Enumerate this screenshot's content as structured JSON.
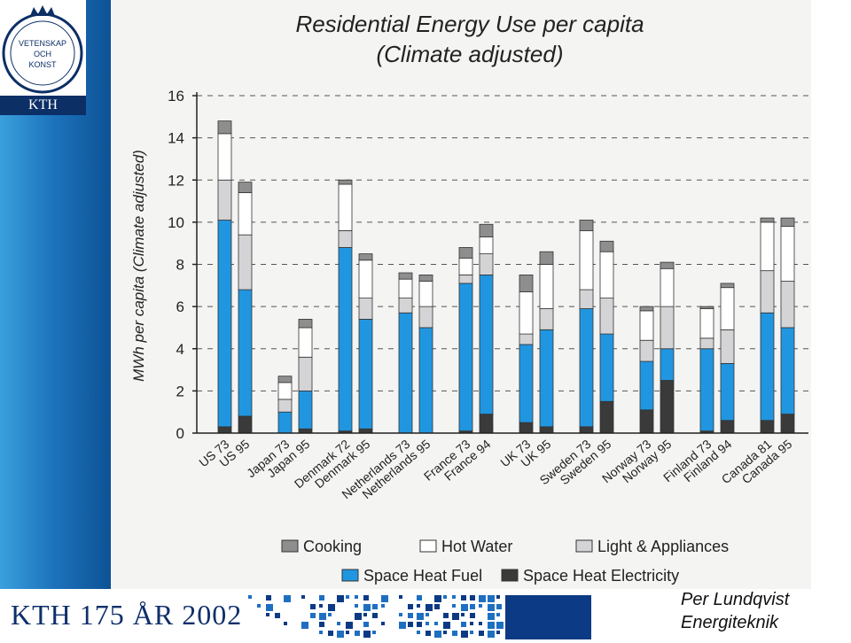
{
  "logo": {
    "line1": "VETENSKAP",
    "line2": "OCH",
    "line3": "KONST",
    "name": "KTH"
  },
  "footer": {
    "title": "KTH 175 ÅR 2002",
    "author": "Per Lundqvist",
    "dept": "Energiteknik"
  },
  "colors": {
    "cooking": "#8e8e8e",
    "hot_water": "#ffffff",
    "light_appliances": "#d4d4d6",
    "space_heat_fuel": "#2196e0",
    "space_heat_electricity": "#3a3a3a"
  },
  "chart_data": {
    "type": "bar",
    "stacked": true,
    "title": "Residential Energy Use per capita",
    "subtitle": "(Climate adjusted)",
    "xlabel": "",
    "ylabel": "MWh per capita (Climate adjusted)",
    "ylim": [
      0,
      16
    ],
    "yticks": [
      0,
      2,
      4,
      6,
      8,
      10,
      12,
      14,
      16
    ],
    "grid": "dashed-horizontal",
    "legend_position": "bottom",
    "categories": [
      "US 73",
      "US 95",
      "Japan 73",
      "Japan 95",
      "Denmark 72",
      "Denmark 95",
      "Netherlands 73",
      "Netherlands 95",
      "France 73",
      "France 94",
      "UK 73",
      "UK 95",
      "Sweden 73",
      "Sweden 95",
      "Norway 73",
      "Norway 95",
      "Finland 73",
      "Finland 94",
      "Canada 81",
      "Canada 95"
    ],
    "series": [
      {
        "name": "Space Heat Electricity",
        "values": [
          0.3,
          0.8,
          0.0,
          0.2,
          0.1,
          0.2,
          0.0,
          0.0,
          0.1,
          0.9,
          0.5,
          0.3,
          0.3,
          1.5,
          1.1,
          2.5,
          0.1,
          0.6,
          0.6,
          0.9
        ]
      },
      {
        "name": "Space Heat Fuel",
        "values": [
          9.8,
          6.0,
          1.0,
          1.8,
          8.7,
          5.2,
          5.7,
          5.0,
          7.0,
          6.6,
          3.7,
          4.6,
          5.6,
          3.2,
          2.3,
          1.5,
          3.9,
          2.7,
          5.1,
          4.1
        ]
      },
      {
        "name": "Light & Appliances",
        "values": [
          1.9,
          2.6,
          0.6,
          1.6,
          0.8,
          1.0,
          0.7,
          1.0,
          0.4,
          1.0,
          0.5,
          1.0,
          0.9,
          1.7,
          1.0,
          2.0,
          0.5,
          1.6,
          2.0,
          2.2
        ]
      },
      {
        "name": "Hot Water",
        "values": [
          2.2,
          2.0,
          0.8,
          1.4,
          2.2,
          1.8,
          0.9,
          1.2,
          0.8,
          0.8,
          2.0,
          2.1,
          2.8,
          2.2,
          1.4,
          1.8,
          1.4,
          2.0,
          2.3,
          2.6
        ]
      },
      {
        "name": "Cooking",
        "values": [
          0.6,
          0.5,
          0.3,
          0.4,
          0.2,
          0.3,
          0.3,
          0.3,
          0.5,
          0.6,
          0.8,
          0.6,
          0.5,
          0.5,
          0.2,
          0.3,
          0.1,
          0.2,
          0.2,
          0.4
        ]
      }
    ]
  }
}
